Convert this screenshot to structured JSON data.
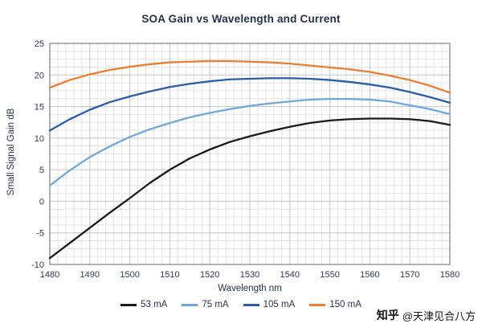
{
  "title": "SOA Gain vs Wavelength and Current",
  "axes": {
    "x_label": "Wavelength  nm",
    "y_label": "Small Signal Gain   dB"
  },
  "watermark": {
    "logo": "知乎",
    "handle": "@天津见合八方"
  },
  "chart_data": {
    "type": "line",
    "title": "SOA Gain vs Wavelength and Current",
    "xlabel": "Wavelength  nm",
    "ylabel": "Small Signal Gain  dB",
    "xlim": [
      1480,
      1580
    ],
    "ylim": [
      -10,
      25
    ],
    "x_major": 10,
    "x_minor": 2,
    "y_major": 5,
    "y_minor": 1.25,
    "grid": true,
    "legend_position": "bottom",
    "x": [
      1480,
      1485,
      1490,
      1495,
      1500,
      1505,
      1510,
      1515,
      1520,
      1525,
      1530,
      1535,
      1540,
      1545,
      1550,
      1555,
      1560,
      1565,
      1570,
      1575,
      1580
    ],
    "series": [
      {
        "name": "53mA",
        "label": "53 mA",
        "color": "#1a1a1a",
        "values": [
          -9,
          -6.6,
          -4.2,
          -1.8,
          0.5,
          2.9,
          5,
          6.8,
          8.2,
          9.4,
          10.3,
          11.1,
          11.8,
          12.4,
          12.8,
          13,
          13.1,
          13.1,
          13,
          12.7,
          12.1
        ]
      },
      {
        "name": "75mA",
        "label": "75 mA",
        "color": "#6fa8dc",
        "values": [
          2.5,
          4.9,
          7,
          8.7,
          10.2,
          11.4,
          12.4,
          13.3,
          14,
          14.6,
          15.1,
          15.5,
          15.8,
          16.1,
          16.2,
          16.2,
          16.1,
          15.8,
          15.2,
          14.6,
          13.8
        ]
      },
      {
        "name": "105mA",
        "label": "105 mA",
        "color": "#2a5caa",
        "values": [
          11.2,
          13,
          14.5,
          15.7,
          16.6,
          17.4,
          18.1,
          18.6,
          19,
          19.3,
          19.4,
          19.5,
          19.5,
          19.4,
          19.2,
          18.9,
          18.5,
          18,
          17.3,
          16.5,
          15.6
        ]
      },
      {
        "name": "150mA",
        "label": "150 mA",
        "color": "#ed7d31",
        "values": [
          18,
          19.2,
          20.1,
          20.8,
          21.3,
          21.7,
          22,
          22.1,
          22.2,
          22.2,
          22.1,
          22,
          21.8,
          21.5,
          21.2,
          20.9,
          20.5,
          19.9,
          19.2,
          18.3,
          17.2
        ]
      }
    ]
  }
}
